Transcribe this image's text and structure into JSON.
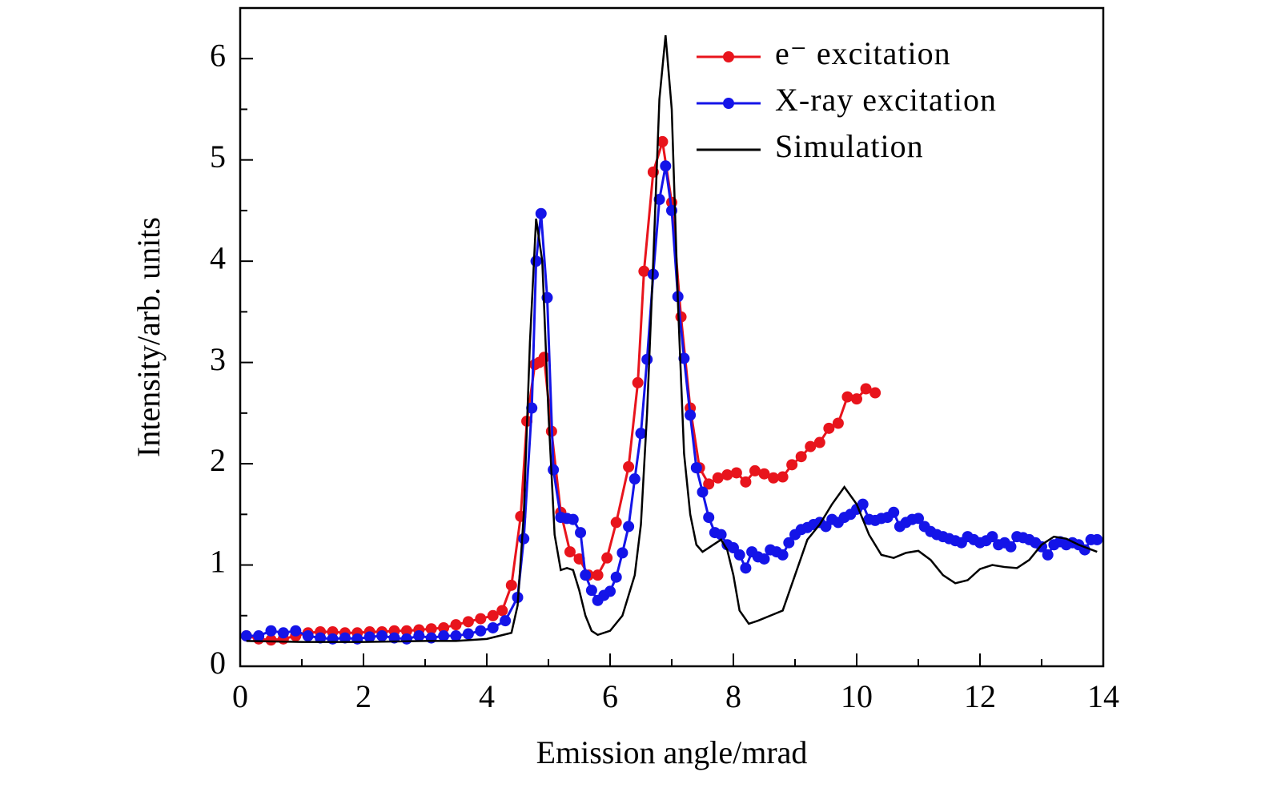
{
  "chart_data": {
    "type": "line",
    "xlabel": "Emission angle/mrad",
    "ylabel": "Intensity/arb. units",
    "xlim": [
      0,
      14
    ],
    "ylim": [
      0,
      6.5
    ],
    "xticks": [
      0,
      2,
      4,
      6,
      8,
      10,
      12,
      14
    ],
    "yticks": [
      0,
      1,
      2,
      3,
      4,
      5,
      6
    ],
    "xminorticks": [
      1,
      3,
      5,
      7,
      9,
      11,
      13
    ],
    "yminorticks": [
      0.5,
      1.5,
      2.5,
      3.5,
      4.5,
      5.5
    ],
    "legend": "upper right",
    "series": [
      {
        "name": "e⁻ excitation",
        "color": "#e8141c",
        "markers": true,
        "x": [
          0.1,
          0.3,
          0.5,
          0.7,
          0.9,
          1.1,
          1.3,
          1.5,
          1.7,
          1.9,
          2.1,
          2.3,
          2.5,
          2.7,
          2.9,
          3.1,
          3.3,
          3.5,
          3.7,
          3.9,
          4.1,
          4.25,
          4.4,
          4.55,
          4.65,
          4.78,
          4.85,
          4.93,
          5.05,
          5.2,
          5.35,
          5.5,
          5.65,
          5.8,
          5.95,
          6.1,
          6.3,
          6.45,
          6.55,
          6.7,
          6.85,
          7.0,
          7.15,
          7.3,
          7.45,
          7.6,
          7.75,
          7.9,
          8.05,
          8.2,
          8.35,
          8.5,
          8.65,
          8.8,
          8.95,
          9.1,
          9.25,
          9.4,
          9.55,
          9.7,
          9.85,
          10.0,
          10.15,
          10.3
        ],
        "values": [
          0.3,
          0.27,
          0.26,
          0.27,
          0.3,
          0.33,
          0.34,
          0.34,
          0.33,
          0.33,
          0.34,
          0.34,
          0.35,
          0.35,
          0.36,
          0.37,
          0.38,
          0.41,
          0.44,
          0.47,
          0.5,
          0.55,
          0.8,
          1.48,
          2.42,
          2.98,
          3.0,
          3.05,
          2.32,
          1.52,
          1.13,
          1.06,
          0.9,
          0.9,
          1.07,
          1.42,
          1.97,
          2.8,
          3.9,
          4.88,
          5.18,
          4.58,
          3.45,
          2.55,
          1.96,
          1.8,
          1.86,
          1.89,
          1.91,
          1.82,
          1.93,
          1.9,
          1.86,
          1.87,
          1.99,
          2.07,
          2.17,
          2.21,
          2.35,
          2.4,
          2.66,
          2.64,
          2.74,
          2.7
        ]
      },
      {
        "name": "X-ray excitation",
        "color": "#1414e8",
        "markers": true,
        "x": [
          0.1,
          0.3,
          0.5,
          0.7,
          0.9,
          1.1,
          1.3,
          1.5,
          1.7,
          1.9,
          2.1,
          2.3,
          2.5,
          2.7,
          2.9,
          3.1,
          3.3,
          3.5,
          3.7,
          3.9,
          4.1,
          4.3,
          4.5,
          4.6,
          4.73,
          4.8,
          4.88,
          4.98,
          5.08,
          5.2,
          5.3,
          5.4,
          5.52,
          5.6,
          5.7,
          5.8,
          5.9,
          6.0,
          6.1,
          6.2,
          6.3,
          6.4,
          6.5,
          6.6,
          6.7,
          6.8,
          6.9,
          7.0,
          7.1,
          7.2,
          7.3,
          7.4,
          7.5,
          7.6,
          7.7,
          7.8,
          7.9,
          8.0,
          8.1,
          8.2,
          8.3,
          8.4,
          8.5,
          8.6,
          8.7,
          8.8,
          8.9,
          9.0,
          9.1,
          9.2,
          9.3,
          9.4,
          9.5,
          9.6,
          9.7,
          9.8,
          9.9,
          10.0,
          10.1,
          10.2,
          10.3,
          10.4,
          10.5,
          10.6,
          10.7,
          10.8,
          10.9,
          11.0,
          11.1,
          11.2,
          11.3,
          11.4,
          11.5,
          11.6,
          11.7,
          11.8,
          11.9,
          12.0,
          12.1,
          12.2,
          12.3,
          12.4,
          12.5,
          12.6,
          12.7,
          12.8,
          12.9,
          13.0,
          13.1,
          13.2,
          13.3,
          13.4,
          13.5,
          13.6,
          13.7,
          13.8,
          13.9
        ],
        "values": [
          0.3,
          0.3,
          0.35,
          0.33,
          0.35,
          0.3,
          0.28,
          0.27,
          0.28,
          0.27,
          0.29,
          0.3,
          0.28,
          0.27,
          0.3,
          0.28,
          0.3,
          0.3,
          0.32,
          0.35,
          0.38,
          0.45,
          0.68,
          1.26,
          2.55,
          4.0,
          4.47,
          3.64,
          1.94,
          1.47,
          1.46,
          1.45,
          1.32,
          0.9,
          0.75,
          0.65,
          0.7,
          0.74,
          0.88,
          1.12,
          1.38,
          1.85,
          2.3,
          3.03,
          3.87,
          4.61,
          4.94,
          4.5,
          3.65,
          3.04,
          2.48,
          1.96,
          1.72,
          1.47,
          1.32,
          1.3,
          1.2,
          1.17,
          1.1,
          0.97,
          1.13,
          1.08,
          1.06,
          1.15,
          1.13,
          1.1,
          1.22,
          1.3,
          1.35,
          1.37,
          1.4,
          1.42,
          1.38,
          1.45,
          1.42,
          1.47,
          1.5,
          1.55,
          1.6,
          1.45,
          1.44,
          1.46,
          1.47,
          1.52,
          1.38,
          1.42,
          1.45,
          1.46,
          1.38,
          1.33,
          1.3,
          1.28,
          1.26,
          1.24,
          1.22,
          1.28,
          1.25,
          1.22,
          1.24,
          1.28,
          1.2,
          1.22,
          1.18,
          1.28,
          1.27,
          1.25,
          1.22,
          1.18,
          1.1,
          1.2,
          1.23,
          1.2,
          1.22,
          1.2,
          1.15,
          1.25,
          1.25
        ]
      },
      {
        "name": "Simulation",
        "color": "#000000",
        "markers": false,
        "x": [
          0.1,
          1,
          2,
          3,
          3.5,
          4,
          4.4,
          4.5,
          4.6,
          4.7,
          4.8,
          4.9,
          5.0,
          5.1,
          5.2,
          5.3,
          5.4,
          5.5,
          5.6,
          5.7,
          5.8,
          6.0,
          6.2,
          6.4,
          6.5,
          6.6,
          6.7,
          6.8,
          6.9,
          7.0,
          7.1,
          7.2,
          7.3,
          7.4,
          7.5,
          7.6,
          7.8,
          7.9,
          8.0,
          8.1,
          8.25,
          8.4,
          8.6,
          8.8,
          9.0,
          9.2,
          9.4,
          9.6,
          9.8,
          10.0,
          10.2,
          10.4,
          10.6,
          10.8,
          11.0,
          11.2,
          11.4,
          11.6,
          11.8,
          12.0,
          12.2,
          12.4,
          12.6,
          12.8,
          13.0,
          13.2,
          13.4,
          13.6,
          13.9
        ],
        "values": [
          0.25,
          0.24,
          0.24,
          0.25,
          0.25,
          0.27,
          0.33,
          0.6,
          1.5,
          3.2,
          4.42,
          4.0,
          2.5,
          1.3,
          0.95,
          0.97,
          0.95,
          0.75,
          0.5,
          0.35,
          0.31,
          0.35,
          0.5,
          0.9,
          1.4,
          2.5,
          4.0,
          5.6,
          6.23,
          5.5,
          3.6,
          2.1,
          1.5,
          1.2,
          1.13,
          1.17,
          1.25,
          1.15,
          0.9,
          0.55,
          0.42,
          0.45,
          0.5,
          0.55,
          0.9,
          1.25,
          1.4,
          1.6,
          1.77,
          1.6,
          1.3,
          1.1,
          1.07,
          1.12,
          1.14,
          1.05,
          0.9,
          0.82,
          0.85,
          0.96,
          1.0,
          0.98,
          0.97,
          1.05,
          1.2,
          1.28,
          1.26,
          1.2,
          1.13
        ]
      }
    ]
  }
}
